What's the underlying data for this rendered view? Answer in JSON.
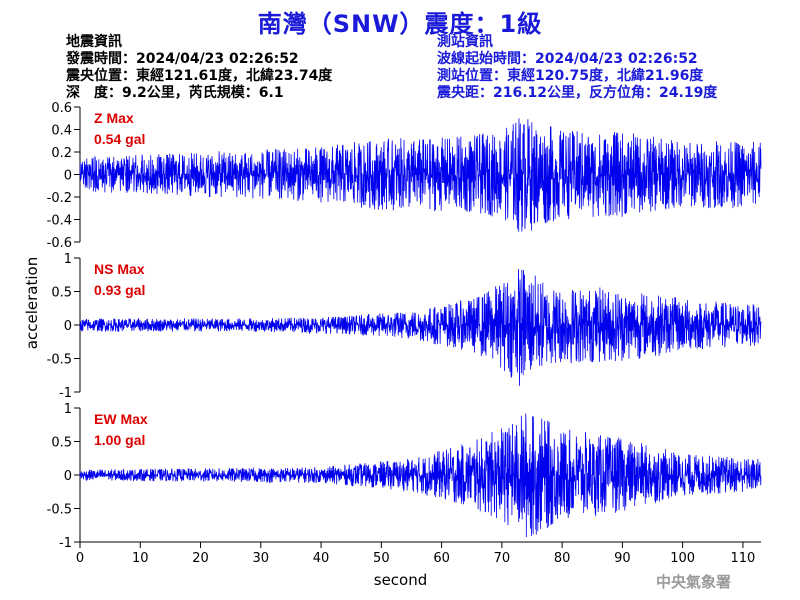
{
  "title": "南灣（SNW）震度：1級",
  "quake_info": {
    "heading": "地震資訊",
    "time": "發震時間：2024/04/23 02:26:52",
    "location": "震央位置：東經121.61度，北緯23.74度",
    "depth_magnitude": "深　度：9.2公里，芮氏規模：6.1"
  },
  "station_info": {
    "heading": "測站資訊",
    "wave_start": "波線起始時間：2024/04/23 02:26:52",
    "location": "測站位置：東經120.75度，北緯21.96度",
    "distance": "震央距：216.12公里，反方位角：24.19度"
  },
  "agency": "中央氣象署",
  "colors": {
    "title": "#1a1ad8",
    "trace": "#0000ee",
    "max_label": "#dd0000",
    "station_text": "#1a1ad8"
  },
  "chart_data": [
    {
      "type": "line",
      "component": "Z",
      "max_label": "Z Max",
      "max_value": "0.54 gal",
      "ylim": [
        -0.6,
        0.6
      ],
      "yticks": [
        "0.6",
        "0.4",
        "0.2",
        "0",
        "-0.2",
        "-0.4",
        "-0.6"
      ],
      "xlim": [
        0,
        113
      ],
      "envelope": [
        {
          "t": 0,
          "amp": 0.15
        },
        {
          "t": 10,
          "amp": 0.18
        },
        {
          "t": 20,
          "amp": 0.2
        },
        {
          "t": 30,
          "amp": 0.22
        },
        {
          "t": 40,
          "amp": 0.25
        },
        {
          "t": 50,
          "amp": 0.32
        },
        {
          "t": 60,
          "amp": 0.33
        },
        {
          "t": 70,
          "amp": 0.38
        },
        {
          "t": 73,
          "amp": 0.54
        },
        {
          "t": 80,
          "amp": 0.4
        },
        {
          "t": 90,
          "amp": 0.38
        },
        {
          "t": 100,
          "amp": 0.3
        },
        {
          "t": 113,
          "amp": 0.3
        }
      ]
    },
    {
      "type": "line",
      "component": "NS",
      "max_label": "NS Max",
      "max_value": "0.93 gal",
      "ylim": [
        -1,
        1
      ],
      "yticks": [
        "1",
        "0.5",
        "0",
        "-0.5",
        "-1"
      ],
      "xlim": [
        0,
        113
      ],
      "envelope": [
        {
          "t": 0,
          "amp": 0.1
        },
        {
          "t": 30,
          "amp": 0.1
        },
        {
          "t": 45,
          "amp": 0.14
        },
        {
          "t": 55,
          "amp": 0.22
        },
        {
          "t": 65,
          "amp": 0.4
        },
        {
          "t": 70,
          "amp": 0.65
        },
        {
          "t": 73,
          "amp": 0.93
        },
        {
          "t": 78,
          "amp": 0.6
        },
        {
          "t": 90,
          "amp": 0.55
        },
        {
          "t": 100,
          "amp": 0.4
        },
        {
          "t": 113,
          "amp": 0.3
        }
      ]
    },
    {
      "type": "line",
      "component": "EW",
      "max_label": "EW Max",
      "max_value": "1.00 gal",
      "ylim": [
        -1,
        1
      ],
      "yticks": [
        "1",
        "0.5",
        "0",
        "-0.5",
        "-1"
      ],
      "xlim": [
        0,
        113
      ],
      "envelope": [
        {
          "t": 0,
          "amp": 0.08
        },
        {
          "t": 40,
          "amp": 0.12
        },
        {
          "t": 55,
          "amp": 0.25
        },
        {
          "t": 65,
          "amp": 0.5
        },
        {
          "t": 72,
          "amp": 0.8
        },
        {
          "t": 74,
          "amp": 1.0
        },
        {
          "t": 80,
          "amp": 0.7
        },
        {
          "t": 90,
          "amp": 0.55
        },
        {
          "t": 100,
          "amp": 0.32
        },
        {
          "t": 113,
          "amp": 0.25
        }
      ]
    }
  ],
  "x_axis": {
    "label": "second",
    "ticks": [
      "0",
      "10",
      "20",
      "30",
      "40",
      "50",
      "60",
      "70",
      "80",
      "90",
      "100",
      "110"
    ]
  },
  "y_axis": {
    "label": "acceleration"
  }
}
